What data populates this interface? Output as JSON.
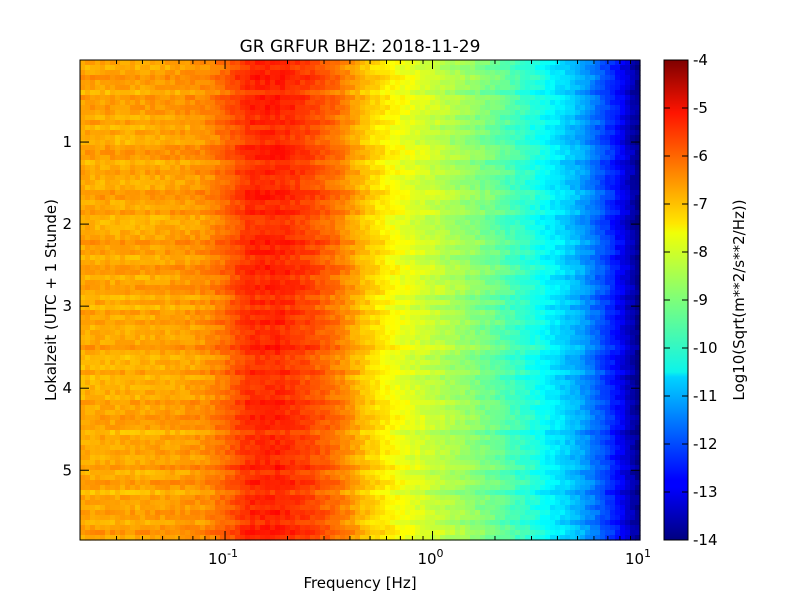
{
  "chart_data": {
    "type": "heatmap",
    "title": "GR GRFUR BHZ: 2018-11-29",
    "xlabel": "Frequency [Hz]",
    "ylabel": "Lokalzeit (UTC + 1 Stunde)",
    "x_scale": "log",
    "xlim": [
      0.02,
      10
    ],
    "x_ticks": [
      {
        "value": 0.1,
        "base": "10",
        "exp": "-1"
      },
      {
        "value": 1,
        "base": "10",
        "exp": "0"
      },
      {
        "value": 10,
        "base": "10",
        "exp": "1"
      }
    ],
    "y_inverted": true,
    "ylim": [
      5.85,
      0
    ],
    "y_ticks": [
      {
        "value": 1,
        "label": "1"
      },
      {
        "value": 2,
        "label": "2"
      },
      {
        "value": 3,
        "label": "3"
      },
      {
        "value": 4,
        "label": "4"
      },
      {
        "value": 5,
        "label": "5"
      }
    ],
    "colormap": "jet",
    "colorbar": {
      "label": "Log10(Sqrt(m**2/s**2/Hz))",
      "range": [
        -14,
        -4
      ],
      "ticks": [
        "-4",
        "-5",
        "-6",
        "-7",
        "-8",
        "-9",
        "-10",
        "-11",
        "-12",
        "-13",
        "-14"
      ]
    },
    "profile": {
      "frequency_hz": [
        0.02,
        0.04,
        0.06,
        0.08,
        0.1,
        0.13,
        0.18,
        0.25,
        0.35,
        0.5,
        0.7,
        1.0,
        1.5,
        2.0,
        3.0,
        4.0,
        5.0,
        6.0,
        7.0,
        8.0,
        9.0,
        10.0
      ],
      "log10_psd": [
        -6.9,
        -6.9,
        -6.8,
        -6.7,
        -6.3,
        -5.7,
        -5.6,
        -5.9,
        -6.4,
        -7.3,
        -7.9,
        -8.3,
        -8.8,
        -9.2,
        -9.9,
        -10.5,
        -11.0,
        -11.6,
        -12.2,
        -12.8,
        -13.4,
        -14.0
      ]
    }
  }
}
